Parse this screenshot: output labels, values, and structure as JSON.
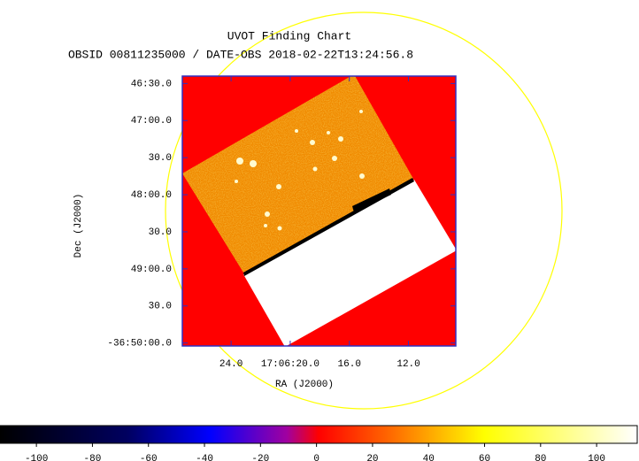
{
  "chart_data": {
    "type": "image",
    "title": "UVOT Finding Chart",
    "subtitle": "OBSID 00811235000 / DATE-OBS 2018-02-22T13:24:56.8",
    "xlabel": "RA (J2000)",
    "ylabel": "Dec (J2000)",
    "xlim": [
      27.3,
      8.8
    ],
    "xticks": [
      {
        "value": 24,
        "label": "24.0"
      },
      {
        "value": 20,
        "label": "17:06:20.0"
      },
      {
        "value": 16,
        "label": "16.0"
      },
      {
        "value": 12,
        "label": "12.0"
      }
    ],
    "ylim": [
      50.04,
      46.4
    ],
    "yticks": [
      {
        "value": 46.5,
        "label": "46:30.0"
      },
      {
        "value": 47,
        "label": "47:00.0"
      },
      {
        "value": 47.5,
        "label": "30.0"
      },
      {
        "value": 48,
        "label": "48:00.0"
      },
      {
        "value": 48.5,
        "label": "30.0"
      },
      {
        "value": 49,
        "label": "49:00.0"
      },
      {
        "value": 49.5,
        "label": "30.0"
      },
      {
        "value": 50,
        "label": "-36:50:00.0"
      }
    ],
    "colorbar": {
      "lim": [
        -113,
        114.5
      ],
      "ticks": [
        -100,
        -80,
        -60,
        -40,
        -20,
        0,
        20,
        40,
        60,
        80,
        100
      ]
    }
  }
}
